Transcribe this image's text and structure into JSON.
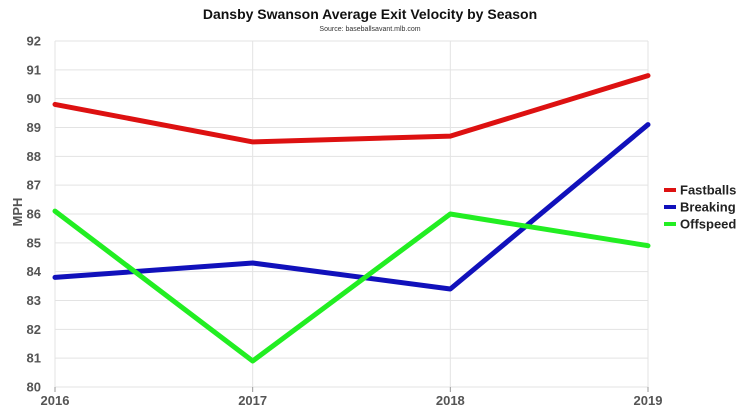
{
  "chart_data": {
    "type": "line",
    "title": "Dansby Swanson Average Exit Velocity by Season",
    "subtitle": "Source: baseballsavant.mlb.com",
    "xlabel": "",
    "ylabel": "MPH",
    "x": [
      "2016",
      "2017",
      "2018",
      "2019"
    ],
    "ylim": [
      80,
      92
    ],
    "yticks": [
      80,
      81,
      82,
      83,
      84,
      85,
      86,
      87,
      88,
      89,
      90,
      91,
      92
    ],
    "grid": true,
    "legend_position": "right",
    "series": [
      {
        "name": "Fastballs",
        "color": "#dd1111",
        "values": [
          89.8,
          88.5,
          88.7,
          90.8
        ]
      },
      {
        "name": "Breaking",
        "color": "#1111bb",
        "values": [
          83.8,
          84.3,
          83.4,
          89.1
        ]
      },
      {
        "name": "Offspeed",
        "color": "#22ee22",
        "values": [
          86.1,
          80.9,
          86.0,
          84.9
        ]
      }
    ]
  }
}
